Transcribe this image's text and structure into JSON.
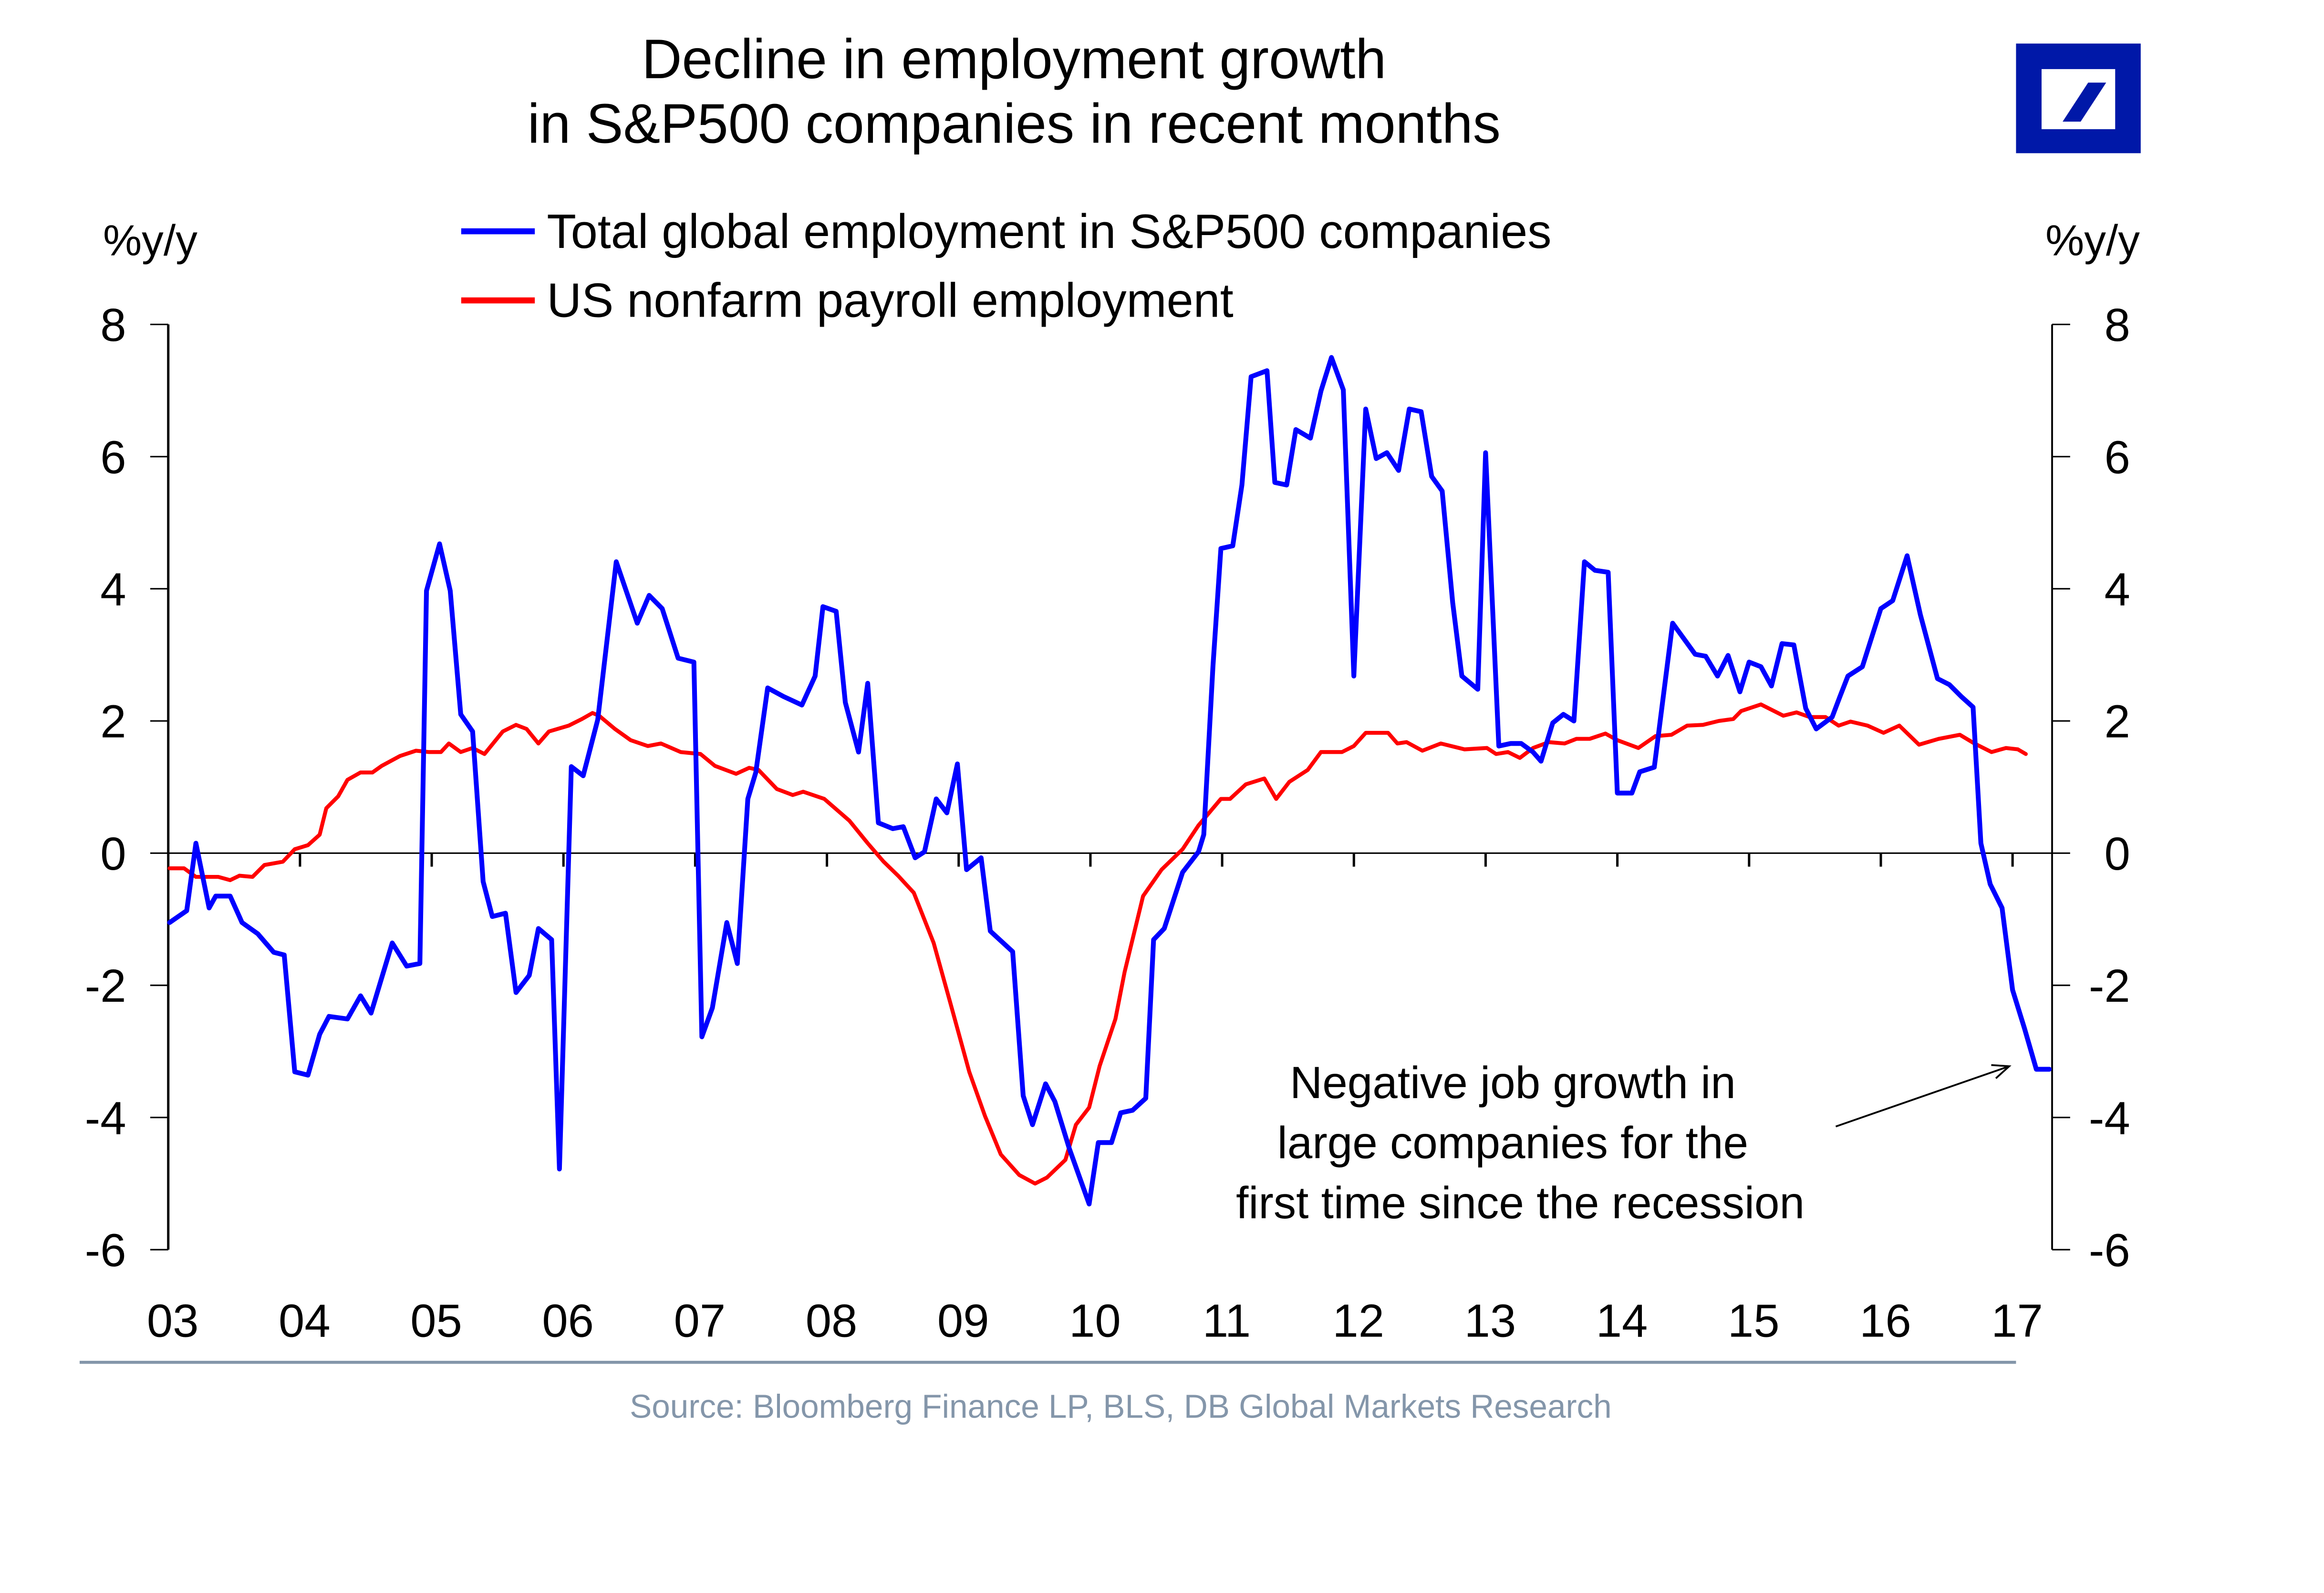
{
  "header": {
    "title_line1": "Decline in employment growth",
    "title_line2": "in S&P500 companies in recent months",
    "logo": "deutsche-bank-logo",
    "logo_color": "#0018A8"
  },
  "source": "Source: Bloomberg Finance LP, BLS, DB Global Markets Research",
  "source_color": "#8496AA",
  "chart_data": {
    "type": "line",
    "title": "Decline in employment growth in S&P500 companies in recent months",
    "ylabel_left": "%y/y",
    "ylabel_right": "%y/y",
    "ylim": [
      -6,
      8
    ],
    "yticks": [
      8,
      6,
      4,
      2,
      0,
      -2,
      -4,
      -6
    ],
    "ytick_labels": [
      "8",
      "6",
      "4",
      "2",
      "0",
      "-2",
      "-4",
      "-6"
    ],
    "xlim": [
      2003.0,
      2017.3
    ],
    "xticks": [
      2003,
      2004,
      2005,
      2006,
      2007,
      2008,
      2009,
      2010,
      2011,
      2012,
      2013,
      2014,
      2015,
      2016,
      2017
    ],
    "xtick_labels": [
      "03",
      "04",
      "05",
      "06",
      "07",
      "08",
      "09",
      "10",
      "11",
      "12",
      "13",
      "14",
      "15",
      "16",
      "17"
    ],
    "zero_line": true,
    "grid": false,
    "legend_position": "top-center",
    "series": [
      {
        "name": "Total global employment in S&P500 companies",
        "color": "#0000FF",
        "x": [
          2003.01,
          2003.14,
          2003.21,
          2003.31,
          2003.36,
          2003.47,
          2003.56,
          2003.68,
          2003.8,
          2003.88,
          2003.96,
          2004.06,
          2004.15,
          2004.22,
          2004.36,
          2004.46,
          2004.54,
          2004.7,
          2004.81,
          2004.91,
          2004.96,
          2005.06,
          2005.14,
          2005.22,
          2005.31,
          2005.39,
          2005.46,
          2005.56,
          2005.64,
          2005.74,
          2005.81,
          2005.91,
          2005.97,
          2006.06,
          2006.15,
          2006.26,
          2006.4,
          2006.56,
          2006.65,
          2006.75,
          2006.87,
          2006.99,
          2007.05,
          2007.13,
          2007.24,
          2007.32,
          2007.4,
          2007.46,
          2007.55,
          2007.67,
          2007.81,
          2007.91,
          2007.97,
          2008.07,
          2008.14,
          2008.24,
          2008.31,
          2008.39,
          2008.5,
          2008.58,
          2008.67,
          2008.74,
          2008.83,
          2008.91,
          2008.99,
          2009.06,
          2009.17,
          2009.24,
          2009.41,
          2009.49,
          2009.56,
          2009.66,
          2009.73,
          2009.84,
          2009.99,
          2010.06,
          2010.16,
          2010.23,
          2010.32,
          2010.42,
          2010.48,
          2010.56,
          2010.7,
          2010.82,
          2010.86,
          2010.93,
          2010.99,
          2011.08,
          2011.15,
          2011.22,
          2011.34,
          2011.4,
          2011.49,
          2011.56,
          2011.67,
          2011.75,
          2011.83,
          2011.92,
          2012.0,
          2012.09,
          2012.17,
          2012.25,
          2012.34,
          2012.42,
          2012.51,
          2012.59,
          2012.67,
          2012.75,
          2012.82,
          2012.94,
          2013.0,
          2013.1,
          2013.19,
          2013.27,
          2013.36,
          2013.42,
          2013.51,
          2013.59,
          2013.67,
          2013.75,
          2013.83,
          2013.93,
          2014.0,
          2014.11,
          2014.17,
          2014.28,
          2014.42,
          2014.59,
          2014.67,
          2014.76,
          2014.84,
          2014.93,
          2015.0,
          2015.09,
          2015.17,
          2015.25,
          2015.34,
          2015.43,
          2015.51,
          2015.63,
          2015.69,
          2015.75,
          2015.86,
          2016.0,
          2016.09,
          2016.2,
          2016.3,
          2016.43,
          2016.52,
          2016.61,
          2016.7,
          2016.76,
          2016.83,
          2016.92,
          2017.0,
          2017.09,
          2017.18,
          2017.28
        ],
        "values": [
          -1.05,
          -0.87,
          0.15,
          -0.83,
          -0.65,
          -0.65,
          -1.05,
          -1.22,
          -1.5,
          -1.54,
          -3.31,
          -3.36,
          -2.74,
          -2.47,
          -2.51,
          -2.16,
          -2.42,
          -1.36,
          -1.71,
          -1.67,
          3.97,
          4.68,
          3.97,
          2.1,
          1.84,
          -0.43,
          -0.96,
          -0.91,
          -2.11,
          -1.85,
          -1.14,
          -1.31,
          -4.78,
          1.31,
          1.17,
          2.02,
          4.41,
          3.48,
          3.9,
          3.7,
          2.95,
          2.89,
          -2.78,
          -2.34,
          -1.05,
          -1.67,
          0.82,
          1.22,
          2.5,
          2.37,
          2.24,
          2.68,
          3.73,
          3.66,
          2.28,
          1.53,
          2.57,
          0.46,
          0.37,
          0.4,
          -0.07,
          0.02,
          0.82,
          0.61,
          1.35,
          -0.25,
          -0.07,
          -1.18,
          -1.49,
          -3.67,
          -4.11,
          -3.49,
          -3.76,
          -4.47,
          -5.31,
          -4.38,
          -4.38,
          -3.93,
          -3.89,
          -3.71,
          -1.31,
          -1.14,
          -0.29,
          0.02,
          0.28,
          2.82,
          4.61,
          4.65,
          5.57,
          7.21,
          7.3,
          5.61,
          5.57,
          6.41,
          6.28,
          6.99,
          7.5,
          7.01,
          2.68,
          6.72,
          5.97,
          6.06,
          5.79,
          6.72,
          6.68,
          5.7,
          5.48,
          3.79,
          2.68,
          2.48,
          6.06,
          1.62,
          1.66,
          1.66,
          1.53,
          1.39,
          1.97,
          2.1,
          2.0,
          4.41,
          4.28,
          4.25,
          0.91,
          0.91,
          1.23,
          1.3,
          3.48,
          3.01,
          2.98,
          2.68,
          2.99,
          2.44,
          2.89,
          2.82,
          2.53,
          3.17,
          3.15,
          2.19,
          1.88,
          2.06,
          2.37,
          2.68,
          2.82,
          3.7,
          3.82,
          4.5,
          3.61,
          2.64,
          2.55,
          2.37,
          2.21,
          0.15,
          -0.47,
          -0.83,
          -2.07,
          -2.65,
          -3.27,
          -3.27
        ]
      },
      {
        "name": "US nonfarm payroll employment",
        "color": "#FF0000",
        "x": [
          2003.01,
          2003.12,
          2003.21,
          2003.38,
          2003.47,
          2003.54,
          2003.64,
          2003.73,
          2003.87,
          2003.96,
          2004.06,
          2004.15,
          2004.2,
          2004.29,
          2004.36,
          2004.46,
          2004.55,
          2004.62,
          2004.76,
          2004.88,
          2004.98,
          2005.07,
          2005.13,
          2005.22,
          2005.31,
          2005.4,
          2005.54,
          2005.64,
          2005.72,
          2005.81,
          2005.89,
          2006.04,
          2006.14,
          2006.22,
          2006.27,
          2006.39,
          2006.51,
          2006.64,
          2006.74,
          2006.89,
          2007.04,
          2007.15,
          2007.31,
          2007.41,
          2007.48,
          2007.62,
          2007.74,
          2007.82,
          2007.98,
          2008.17,
          2008.31,
          2008.43,
          2008.54,
          2008.66,
          2008.81,
          2008.94,
          2009.08,
          2009.2,
          2009.32,
          2009.46,
          2009.58,
          2009.67,
          2009.81,
          2009.89,
          2009.99,
          2010.07,
          2010.19,
          2010.26,
          2010.4,
          2010.54,
          2010.7,
          2010.82,
          2010.99,
          2011.06,
          2011.18,
          2011.32,
          2011.41,
          2011.51,
          2011.65,
          2011.75,
          2011.91,
          2012.0,
          2012.09,
          2012.26,
          2012.33,
          2012.4,
          2012.52,
          2012.66,
          2012.84,
          2013.01,
          2013.08,
          2013.17,
          2013.26,
          2013.36,
          2013.48,
          2013.6,
          2013.69,
          2013.79,
          2013.91,
          2014.0,
          2014.16,
          2014.29,
          2014.41,
          2014.53,
          2014.65,
          2014.77,
          2014.88,
          2014.94,
          2015.09,
          2015.26,
          2015.36,
          2015.46,
          2015.58,
          2015.68,
          2015.77,
          2015.9,
          2016.02,
          2016.14,
          2016.29,
          2016.44,
          2016.6,
          2016.71,
          2016.84,
          2016.95,
          2017.04,
          2017.1
        ],
        "values": [
          -0.23,
          -0.23,
          -0.36,
          -0.36,
          -0.41,
          -0.34,
          -0.36,
          -0.18,
          -0.13,
          0.06,
          0.12,
          0.28,
          0.68,
          0.86,
          1.11,
          1.22,
          1.22,
          1.32,
          1.47,
          1.55,
          1.53,
          1.53,
          1.66,
          1.53,
          1.59,
          1.5,
          1.84,
          1.94,
          1.88,
          1.66,
          1.84,
          1.93,
          2.03,
          2.12,
          2.08,
          1.88,
          1.71,
          1.62,
          1.66,
          1.53,
          1.5,
          1.32,
          1.2,
          1.29,
          1.26,
          0.97,
          0.88,
          0.93,
          0.82,
          0.49,
          0.15,
          -0.13,
          -0.34,
          -0.6,
          -1.36,
          -2.29,
          -3.31,
          -3.98,
          -4.56,
          -4.87,
          -5.0,
          -4.91,
          -4.64,
          -4.11,
          -3.85,
          -3.22,
          -2.51,
          -1.8,
          -0.65,
          -0.25,
          0.06,
          0.42,
          0.82,
          0.82,
          1.04,
          1.13,
          0.82,
          1.08,
          1.26,
          1.53,
          1.53,
          1.62,
          1.82,
          1.82,
          1.66,
          1.68,
          1.55,
          1.66,
          1.57,
          1.59,
          1.5,
          1.53,
          1.44,
          1.59,
          1.68,
          1.66,
          1.73,
          1.73,
          1.81,
          1.71,
          1.59,
          1.77,
          1.79,
          1.93,
          1.94,
          2.0,
          2.03,
          2.15,
          2.25,
          2.08,
          2.13,
          2.06,
          2.06,
          1.93,
          1.99,
          1.93,
          1.82,
          1.93,
          1.64,
          1.73,
          1.79,
          1.66,
          1.53,
          1.59,
          1.57,
          1.5
        ]
      }
    ],
    "annotations": [
      {
        "lines": [
          "Negative job growth in",
          "large companies for the",
          "first time since the recession"
        ],
        "arrow_to": {
          "x": 2017.18,
          "y": -3.27
        },
        "arrow_from": {
          "x": 2015.6,
          "y": -4.2
        }
      }
    ]
  }
}
